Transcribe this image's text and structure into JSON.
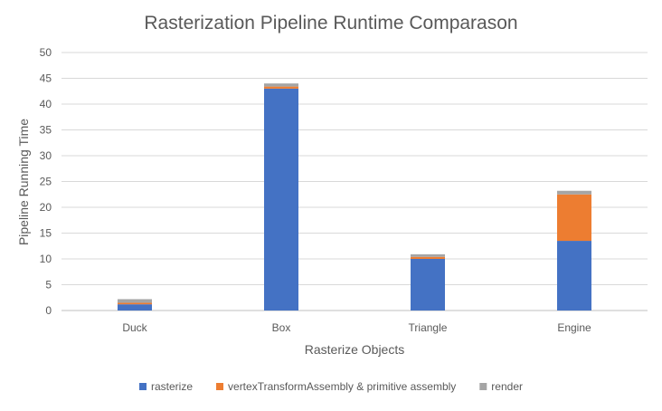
{
  "chart_data": {
    "type": "bar",
    "stacked": true,
    "title": "Rasterization Pipeline Runtime Comparason",
    "xlabel": "Rasterize Objects",
    "ylabel": "Pipeline Running Time",
    "categories": [
      "Duck",
      "Box",
      "Triangle",
      "Engine"
    ],
    "series": [
      {
        "name": "rasterize",
        "color": "#4472C4",
        "values": [
          1.2,
          43.0,
          10.0,
          13.5
        ]
      },
      {
        "name": "vertexTransformAssembly & primitive assembly",
        "color": "#ED7D31",
        "values": [
          0.3,
          0.4,
          0.4,
          9.0
        ]
      },
      {
        "name": "render",
        "color": "#A5A5A5",
        "values": [
          0.7,
          0.6,
          0.5,
          0.7
        ]
      }
    ],
    "ylim": [
      0,
      50
    ],
    "yticks": [
      "0",
      "5",
      "10",
      "15",
      "20",
      "25",
      "30",
      "35",
      "40",
      "45",
      "50"
    ],
    "grid": true,
    "legend_position": "bottom"
  }
}
